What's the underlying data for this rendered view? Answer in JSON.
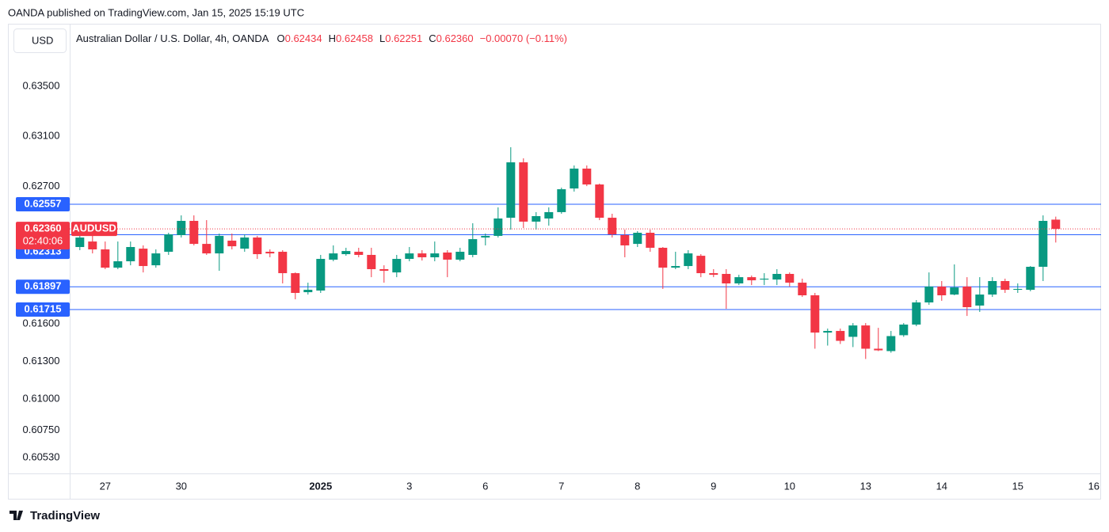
{
  "header": {
    "publisher": "OANDA published on TradingView.com, Jan 15, 2025 15:19 UTC",
    "currency_button": "USD",
    "symbol_title": "Australian Dollar / U.S. Dollar, 4h, OANDA",
    "ohlc": [
      {
        "key": "O",
        "value": "0.62434"
      },
      {
        "key": "H",
        "value": "0.62458"
      },
      {
        "key": "L",
        "value": "0.62251"
      },
      {
        "key": "C",
        "value": "0.62360"
      }
    ],
    "change": "−0.00070 (−0.11%)"
  },
  "footer": {
    "logo_text": "TradingView"
  },
  "chart_data": {
    "type": "candlestick",
    "symbol": "AUDUSD",
    "countdown": "02:40:06",
    "up_color": "#089981",
    "down_color": "#f23645",
    "line_color": "#2962ff",
    "categories": [
      null,
      null,
      "27",
      null,
      null,
      null,
      null,
      null,
      "30",
      null,
      null,
      null,
      null,
      null,
      null,
      null,
      null,
      null,
      null,
      "2025",
      null,
      null,
      null,
      null,
      null,
      null,
      "3",
      null,
      null,
      null,
      null,
      null,
      "6",
      null,
      null,
      null,
      null,
      null,
      "7",
      null,
      null,
      null,
      null,
      null,
      "8",
      null,
      null,
      null,
      null,
      null,
      "9",
      null,
      null,
      null,
      null,
      null,
      "10",
      null,
      null,
      null,
      null,
      null,
      "13",
      null,
      null,
      null,
      null,
      null,
      "14",
      null,
      null,
      null,
      null,
      null,
      "15",
      null,
      null,
      null,
      null,
      null,
      "16"
    ],
    "open": [
      0.62215,
      0.62259,
      0.62196,
      0.6205,
      0.62101,
      0.62202,
      0.62069,
      0.62177,
      0.6231,
      0.62424,
      0.6224,
      0.62164,
      0.62266,
      0.62202,
      0.62291,
      0.62177,
      0.62177,
      0.62006,
      0.61854,
      0.61867,
      0.62114,
      0.62158,
      0.62177,
      0.62152,
      0.62038,
      0.62012,
      0.6212,
      0.62164,
      0.62133,
      0.62171,
      0.62114,
      0.62152,
      0.62291,
      0.62304,
      0.62449,
      0.62892,
      0.62418,
      0.62443,
      0.62494,
      0.62683,
      0.62842,
      0.62715,
      0.62449,
      0.6231,
      0.6224,
      0.62329,
      0.62209,
      0.6205,
      0.62063,
      0.62145,
      0.62006,
      0.62,
      0.61924,
      0.61974,
      0.61955,
      0.61955,
      0.62,
      0.6193,
      0.61829,
      0.61531,
      0.61544,
      0.61497,
      0.61588,
      0.61402,
      0.61383,
      0.6151,
      0.61595,
      0.61772,
      0.61899,
      0.61835,
      0.61899,
      0.61747,
      0.61835,
      0.61943,
      0.61873,
      0.61873,
      0.62057,
      0.62434,
      null,
      null,
      null
    ],
    "high": [
      0.62304,
      0.62304,
      0.62259,
      0.62259,
      0.62259,
      0.62228,
      0.62196,
      0.62329,
      0.62468,
      0.62468,
      0.6243,
      0.62323,
      0.62323,
      0.62316,
      0.62304,
      0.62196,
      0.6219,
      0.62012,
      0.6193,
      0.62152,
      0.62228,
      0.62209,
      0.62209,
      0.62209,
      0.62069,
      0.62152,
      0.62215,
      0.6219,
      0.62259,
      0.6219,
      0.62209,
      0.62405,
      0.62323,
      0.62532,
      0.63013,
      0.62924,
      0.62494,
      0.62532,
      0.6269,
      0.62867,
      0.62867,
      0.62722,
      0.62481,
      0.62354,
      0.62342,
      0.62354,
      0.62215,
      0.62177,
      0.6219,
      0.62158,
      0.62038,
      0.62038,
      0.61993,
      0.61987,
      0.62006,
      0.62038,
      0.62012,
      0.61962,
      0.61848,
      0.61563,
      0.61563,
      0.61607,
      0.61607,
      0.61569,
      0.61544,
      0.61607,
      0.61791,
      0.62012,
      0.61943,
      0.62076,
      0.61974,
      0.61974,
      0.61974,
      0.61962,
      0.61924,
      0.62063,
      0.62468,
      0.62458,
      null,
      null,
      null
    ],
    "low": [
      0.6219,
      0.62164,
      0.62038,
      0.62038,
      0.62069,
      0.62012,
      0.6205,
      0.62152,
      0.62291,
      0.62228,
      0.62152,
      0.62025,
      0.62196,
      0.62177,
      0.6212,
      0.62133,
      0.61924,
      0.61797,
      0.61835,
      0.61848,
      0.62101,
      0.62145,
      0.62133,
      0.61974,
      0.6193,
      0.61974,
      0.62101,
      0.62107,
      0.62101,
      0.61974,
      0.62101,
      0.62133,
      0.62228,
      0.62291,
      0.62354,
      0.62367,
      0.62354,
      0.62386,
      0.62481,
      0.62658,
      0.62702,
      0.6243,
      0.62291,
      0.62133,
      0.62215,
      0.62177,
      0.6188,
      0.62038,
      0.62038,
      0.61974,
      0.61974,
      0.61721,
      0.61911,
      0.61911,
      0.61911,
      0.61911,
      0.61899,
      0.61816,
      0.61402,
      0.61427,
      0.6144,
      0.61415,
      0.6132,
      0.61383,
      0.6137,
      0.61497,
      0.61582,
      0.61753,
      0.61785,
      0.61829,
      0.61664,
      0.61696,
      0.61816,
      0.61848,
      0.61848,
      0.61861,
      0.61943,
      0.62251,
      null,
      null,
      null
    ],
    "close": [
      0.62291,
      0.62196,
      0.6205,
      0.62101,
      0.62215,
      0.62063,
      0.62164,
      0.62316,
      0.62424,
      0.6224,
      0.62164,
      0.62304,
      0.62221,
      0.62291,
      0.62158,
      0.62164,
      0.62006,
      0.61848,
      0.61873,
      0.6212,
      0.62164,
      0.62183,
      0.62152,
      0.62038,
      0.62025,
      0.6212,
      0.62164,
      0.62133,
      0.62164,
      0.62114,
      0.62177,
      0.62278,
      0.62304,
      0.62443,
      0.62892,
      0.62418,
      0.62462,
      0.62494,
      0.62677,
      0.62842,
      0.62715,
      0.62449,
      0.62316,
      0.62228,
      0.62329,
      0.62209,
      0.6205,
      0.62063,
      0.62164,
      0.62006,
      0.61993,
      0.61924,
      0.61974,
      0.61949,
      0.61962,
      0.62,
      0.6193,
      0.61829,
      0.61531,
      0.61544,
      0.61465,
      0.61588,
      0.61402,
      0.61389,
      0.61503,
      0.61595,
      0.61772,
      0.61899,
      0.61829,
      0.61892,
      0.61734,
      0.61835,
      0.61943,
      0.61873,
      0.6188,
      0.62057,
      0.62424,
      0.6236,
      null,
      null,
      null
    ],
    "ylim": [
      0.60405,
      0.64
    ],
    "yticks": [
      {
        "value": 0.635,
        "label": "0.63500"
      },
      {
        "value": 0.631,
        "label": "0.63100"
      },
      {
        "value": 0.627,
        "label": "0.62700"
      },
      {
        "value": 0.616,
        "label": "0.61600"
      },
      {
        "value": 0.613,
        "label": "0.61300"
      },
      {
        "value": 0.61,
        "label": "0.61000"
      },
      {
        "value": 0.6075,
        "label": "0.60750"
      },
      {
        "value": 0.6053,
        "label": "0.60530"
      }
    ],
    "price_lines": [
      {
        "value": 0.62557,
        "label": "0.62557"
      },
      {
        "value": 0.62313,
        "label": "0.62313"
      },
      {
        "value": 0.61897,
        "label": "0.61897"
      },
      {
        "value": 0.61715,
        "label": "0.61715"
      }
    ],
    "last_price": {
      "value": 0.6236,
      "label": "0.62360"
    }
  }
}
